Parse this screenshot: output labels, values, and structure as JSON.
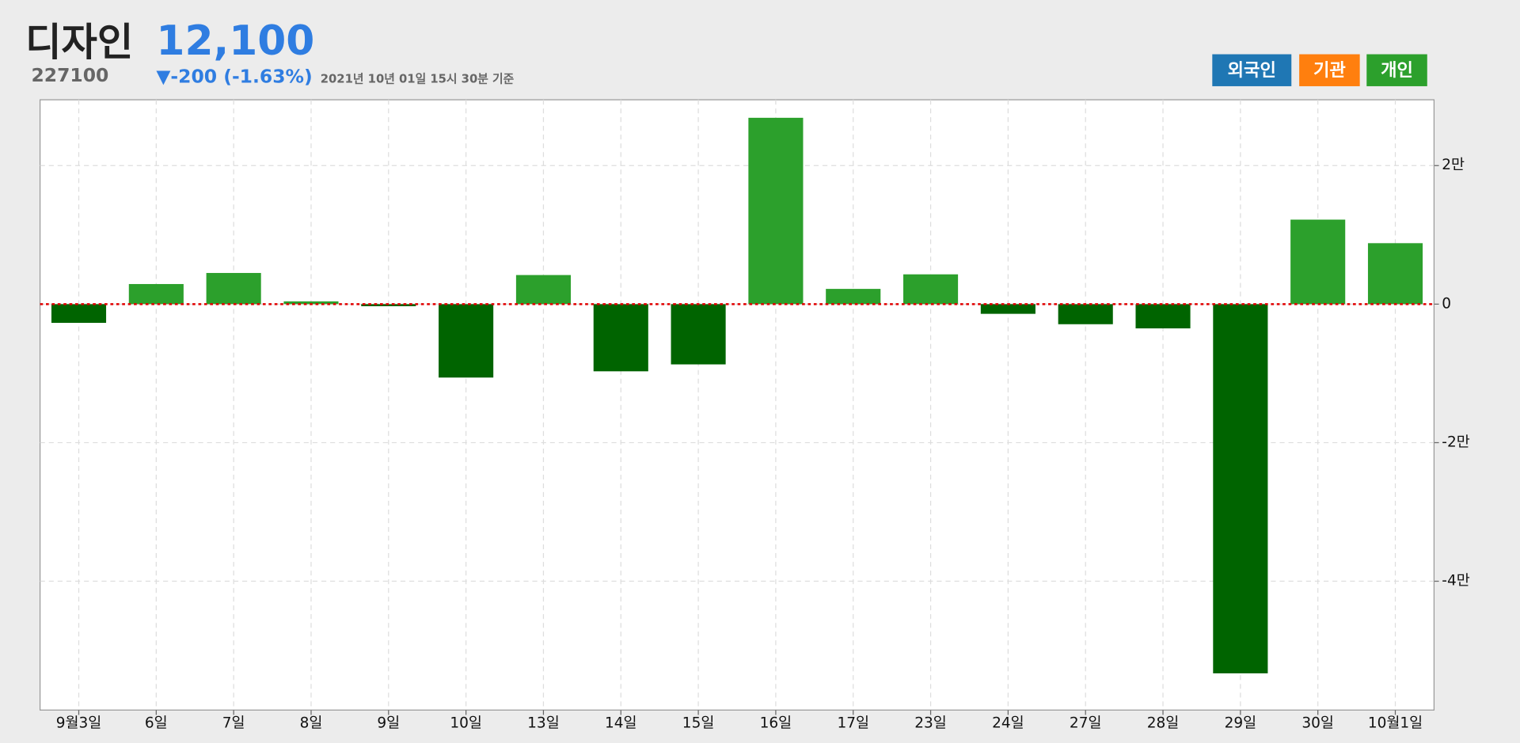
{
  "chart_data": {
    "type": "bar",
    "title": "디자인",
    "code": "227100",
    "price": "12,100",
    "change": "▼-200 (-1.63%)",
    "timestamp": "2021년 10년 01일 15시 30분 기준",
    "buttons": [
      {
        "label": "외국인",
        "color": "#1f77b4"
      },
      {
        "label": "기관",
        "color": "#ff7f0e"
      },
      {
        "label": "개인",
        "color": "#2ca02c"
      }
    ],
    "categories": [
      "9월3일",
      "6일",
      "7일",
      "8일",
      "9일",
      "10일",
      "13일",
      "14일",
      "15일",
      "16일",
      "17일",
      "23일",
      "24일",
      "27일",
      "28일",
      "29일",
      "30일",
      "10월1일"
    ],
    "values": [
      -2700,
      2900,
      4500,
      400,
      -300,
      -10600,
      4200,
      -9700,
      -8700,
      26900,
      2200,
      4300,
      -1400,
      -2900,
      -3500,
      -53300,
      12200,
      8800
    ],
    "color_positive": "#2ca02c",
    "color_negative": "#006400",
    "ylim": [
      -58600,
      29500
    ],
    "yticks": [
      {
        "value": 20000,
        "label": "2만"
      },
      0,
      {
        "value": -20000,
        "label": "-2만"
      },
      {
        "value": -40000,
        "label": "-4만"
      }
    ],
    "grid": true,
    "zero_line_color": "#e00000"
  }
}
